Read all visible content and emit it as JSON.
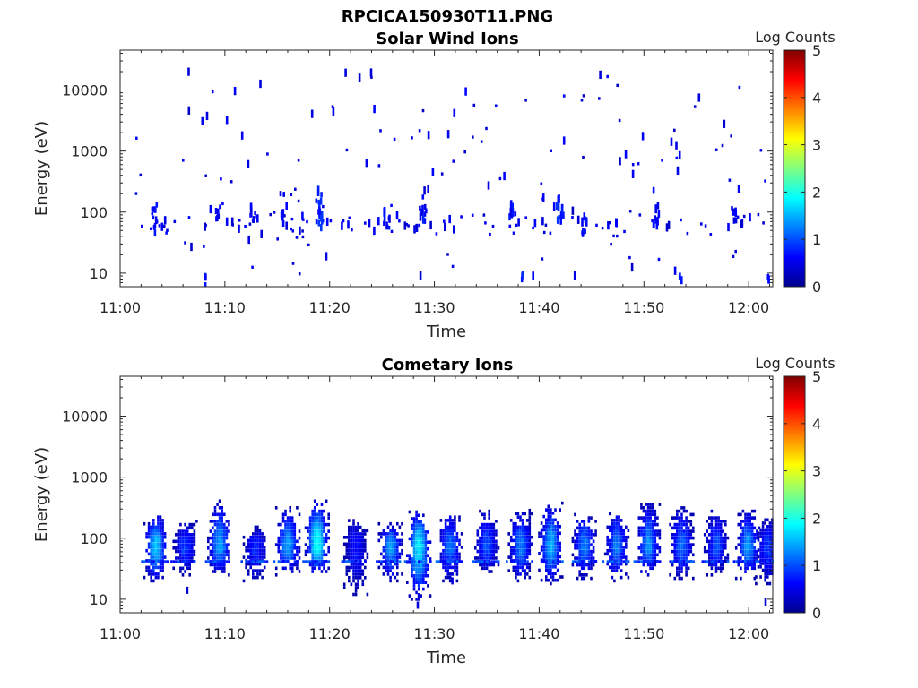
{
  "figure": {
    "title": "RPCICA150930T11.PNG"
  },
  "colors": {
    "colormap": [
      "#00008f",
      "#0000ff",
      "#0080ff",
      "#00ffff",
      "#80ff80",
      "#ffff00",
      "#ff8000",
      "#ff0000",
      "#800000"
    ],
    "axis": "#262626"
  },
  "chart_data": [
    {
      "type": "heatmap",
      "title": "Solar Wind Ions",
      "xlabel": "Time",
      "ylabel": "Energy (eV)",
      "x_ticks": [
        "11:00",
        "11:10",
        "11:20",
        "11:30",
        "11:40",
        "11:50",
        "12:00"
      ],
      "x_range_minutes": [
        0,
        62.3
      ],
      "y_scale": "log",
      "y_ticks": [
        "10",
        "100",
        "1000",
        "10000"
      ],
      "y_range_eV": [
        6,
        45000
      ],
      "colorbar": {
        "label": "Log Counts",
        "range": [
          0,
          5
        ],
        "ticks": [
          "0",
          "1",
          "2",
          "3",
          "4",
          "5"
        ]
      },
      "grid": false,
      "spots": [
        {
          "t": 3.2,
          "e": 90,
          "dt": 0.25,
          "de": 0.22,
          "n": 10,
          "c": 0.5
        },
        {
          "t": 8.0,
          "e": 8,
          "dt": 0.1,
          "de": 0.08,
          "n": 3,
          "c": 0.6
        },
        {
          "t": 9.2,
          "e": 100,
          "dt": 0.3,
          "de": 0.18,
          "n": 6,
          "c": 0.4
        },
        {
          "t": 12.5,
          "e": 90,
          "dt": 0.3,
          "de": 0.2,
          "n": 6,
          "c": 0.4
        },
        {
          "t": 15.5,
          "e": 90,
          "dt": 0.35,
          "de": 0.25,
          "n": 10,
          "c": 0.5
        },
        {
          "t": 18.9,
          "e": 110,
          "dt": 0.3,
          "de": 0.3,
          "n": 18,
          "c": 0.6
        },
        {
          "t": 25.3,
          "e": 80,
          "dt": 0.25,
          "de": 0.2,
          "n": 8,
          "c": 0.5
        },
        {
          "t": 28.8,
          "e": 90,
          "dt": 0.3,
          "de": 0.25,
          "n": 10,
          "c": 0.5
        },
        {
          "t": 37.2,
          "e": 100,
          "dt": 0.25,
          "de": 0.2,
          "n": 8,
          "c": 0.5
        },
        {
          "t": 41.9,
          "e": 120,
          "dt": 0.25,
          "de": 0.25,
          "n": 12,
          "c": 0.6
        },
        {
          "t": 44.1,
          "e": 60,
          "dt": 0.4,
          "de": 0.2,
          "n": 8,
          "c": 0.5
        },
        {
          "t": 51.0,
          "e": 90,
          "dt": 0.25,
          "de": 0.25,
          "n": 10,
          "c": 0.5
        },
        {
          "t": 58.5,
          "e": 100,
          "dt": 0.25,
          "de": 0.2,
          "n": 6,
          "c": 0.4
        },
        {
          "t": 38.3,
          "e": 8,
          "dt": 0.1,
          "de": 0.06,
          "n": 3,
          "c": 0.6
        },
        {
          "t": 53.3,
          "e": 8,
          "dt": 0.1,
          "de": 0.06,
          "n": 3,
          "c": 0.6
        },
        {
          "t": 61.8,
          "e": 8,
          "dt": 0.1,
          "de": 0.06,
          "n": 3,
          "c": 0.6
        }
      ],
      "scatter_count": 240,
      "scatter_t_range": [
        0.8,
        62.0
      ],
      "scatter_e_range": [
        8,
        20000
      ]
    },
    {
      "type": "heatmap",
      "title": "Cometary Ions",
      "xlabel": "Time",
      "ylabel": "Energy (eV)",
      "x_ticks": [
        "11:00",
        "11:10",
        "11:20",
        "11:30",
        "11:40",
        "11:50",
        "12:00"
      ],
      "x_range_minutes": [
        0,
        62.3
      ],
      "y_scale": "log",
      "y_ticks": [
        "10",
        "100",
        "1000",
        "10000"
      ],
      "y_range_eV": [
        6,
        45000
      ],
      "colorbar": {
        "label": "Log Counts",
        "range": [
          0,
          5
        ],
        "ticks": [
          "0",
          "1",
          "2",
          "3",
          "4",
          "5"
        ]
      },
      "grid": false,
      "bursts_minutes": [
        3.3,
        6.1,
        9.4,
        12.8,
        15.9,
        18.7,
        22.4,
        25.7,
        28.4,
        31.4,
        34.9,
        38.1,
        41.0,
        44.2,
        47.3,
        50.3,
        53.5,
        56.8,
        59.8,
        61.7
      ],
      "burst_peak_log_counts": [
        1.6,
        0.9,
        1.4,
        0.8,
        1.4,
        1.9,
        0.7,
        1.4,
        1.8,
        1.2,
        1.0,
        1.2,
        1.5,
        1.2,
        1.2,
        1.3,
        1.1,
        1.0,
        1.4,
        0.9
      ],
      "burst_top_eV": [
        250,
        200,
        420,
        160,
        330,
        450,
        210,
        180,
        300,
        250,
        310,
        300,
        380,
        270,
        280,
        400,
        320,
        300,
        280,
        220
      ],
      "burst_bottom_eV": [
        20,
        25,
        25,
        20,
        25,
        25,
        12,
        20,
        10,
        20,
        25,
        20,
        18,
        22,
        20,
        25,
        22,
        25,
        22,
        18
      ],
      "burst_center_eV": 75
    }
  ]
}
